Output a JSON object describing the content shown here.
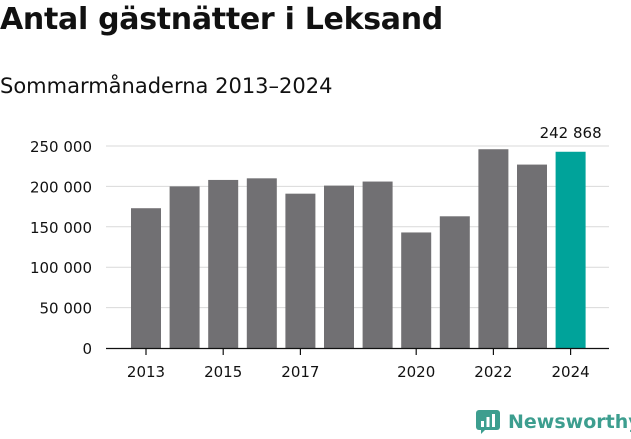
{
  "chart_data": {
    "type": "bar",
    "title": "Antal gästnätter i Leksand",
    "subtitle": "Sommarmånaderna 2013–2024",
    "categories": [
      "2013",
      "2014",
      "2015",
      "2016",
      "2017",
      "2018",
      "2019",
      "2020",
      "2021",
      "2022",
      "2023",
      "2024"
    ],
    "x_tick_labels": [
      "2013",
      "",
      "2015",
      "",
      "2017",
      "",
      "",
      "2020",
      "",
      "2022",
      "",
      "2024"
    ],
    "values": [
      173000,
      200000,
      208000,
      210000,
      191000,
      201000,
      206000,
      143000,
      163000,
      246000,
      227000,
      242868
    ],
    "y_ticks": [
      0,
      50000,
      100000,
      150000,
      200000,
      250000
    ],
    "y_tick_labels": [
      "0",
      "50 000",
      "100 000",
      "150 000",
      "200 000",
      "250 000"
    ],
    "ylim": [
      0,
      250000
    ],
    "grid": true,
    "highlight_index": 11,
    "highlight_label": "242 868",
    "colors": {
      "bar": "#717073",
      "highlight": "#00a39a",
      "grid": "#d9d9d9",
      "axis": "#111111"
    }
  },
  "brand": {
    "name": "Newsworthy",
    "icon": "newsworthy-logo-icon",
    "color": "#3d9e8f"
  }
}
